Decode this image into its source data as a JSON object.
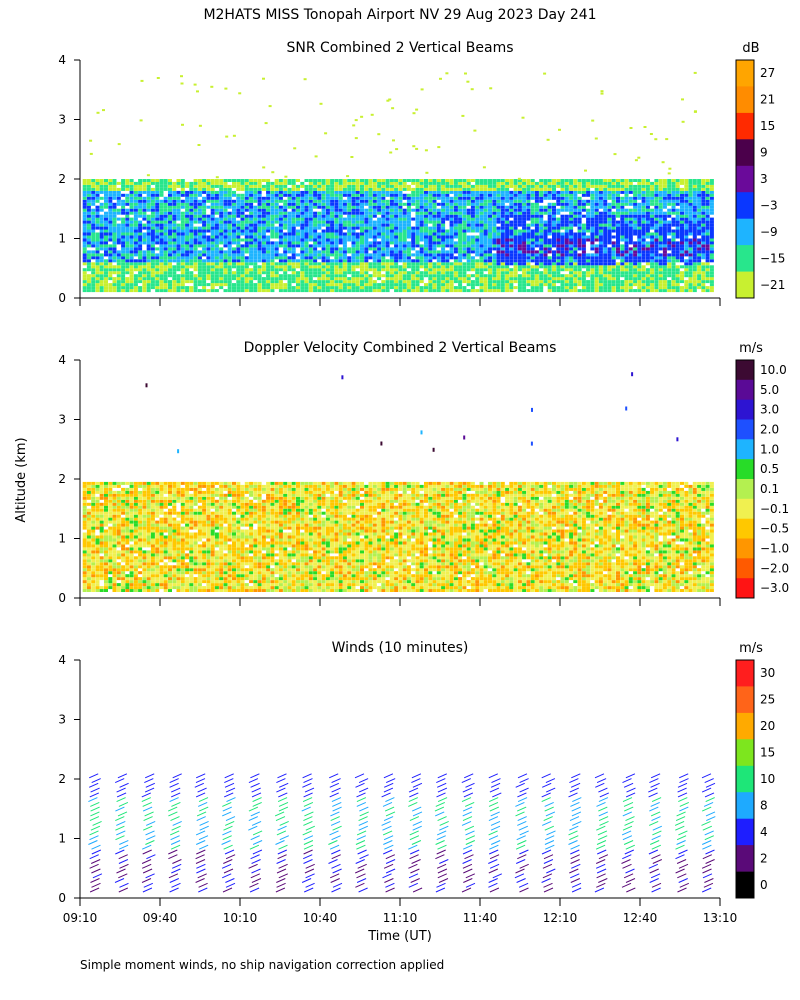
{
  "header": {
    "title": "M2HATS MISS Tonopah Airport NV  29 Aug 2023 Day 241"
  },
  "axes": {
    "shared_ylabel": "Altitude (km)",
    "shared_xlabel": "Time (UT)",
    "x_ticks": [
      "09:10",
      "09:40",
      "10:10",
      "10:40",
      "11:10",
      "11:40",
      "12:10",
      "12:40",
      "13:10"
    ],
    "y_ticks": [
      "0",
      "1",
      "2",
      "3",
      "4"
    ]
  },
  "footer": {
    "note": "Simple moment winds, no ship navigation correction applied"
  },
  "colors": {
    "white": "#ffffff",
    "black": "#000000"
  },
  "chart_data": [
    {
      "type": "heatmap",
      "title": "SNR Combined 2 Vertical Beams",
      "xlabel": "",
      "ylabel": "Altitude (km)",
      "ylim": [
        0,
        4
      ],
      "x_range": [
        "09:10",
        "13:10"
      ],
      "colorbar": {
        "unit": "dB",
        "labels": [
          "27",
          "21",
          "15",
          "9",
          "3",
          "−3",
          "−9",
          "−15",
          "−21"
        ],
        "colors": [
          "#ffa500",
          "#ff8c00",
          "#ff2a00",
          "#4b004b",
          "#6a0a9a",
          "#0a37ff",
          "#1eb4ff",
          "#28e68c",
          "#c8f030"
        ]
      },
      "layers": [
        {
          "name": "near-surface",
          "altitude_km": [
            0.1,
            0.6
          ],
          "snr_db": -15
        },
        {
          "name": "strong return band",
          "altitude_km": [
            0.6,
            1.8
          ],
          "snr_db": -6
        },
        {
          "name": "afternoon strong layers",
          "altitude_km": [
            0.5,
            1.5
          ],
          "snr_db": 0
        },
        {
          "name": "boundary-layer top",
          "altitude_km": [
            1.8,
            2.0
          ],
          "snr_db": -18
        }
      ]
    },
    {
      "type": "heatmap",
      "title": "Doppler Velocity Combined 2 Vertical Beams",
      "xlabel": "",
      "ylabel": "Altitude (km)",
      "ylim": [
        0,
        4
      ],
      "x_range": [
        "09:10",
        "13:10"
      ],
      "colorbar": {
        "unit": "m/s",
        "labels": [
          "10.0",
          "5.0",
          "3.0",
          "2.0",
          "1.0",
          "0.5",
          "0.1",
          "−0.1",
          "−0.5",
          "−1.0",
          "−2.0",
          "−3.0"
        ],
        "colors": [
          "#3c0a32",
          "#5a0a96",
          "#2d14d2",
          "#1e50ff",
          "#1eb4ff",
          "#28dc28",
          "#b4f050",
          "#f0f050",
          "#ffc800",
          "#ff9600",
          "#ff5a00",
          "#ff1414"
        ]
      },
      "layers": [
        {
          "name": "mixed layer",
          "altitude_km": [
            0.1,
            1.9
          ],
          "velocity_ms": [
            -0.5,
            0.1
          ]
        }
      ]
    },
    {
      "type": "scatter",
      "title": "Winds (10 minutes)",
      "xlabel": "Time (UT)",
      "ylabel": "Altitude (km)",
      "ylim": [
        0,
        4
      ],
      "x_range": [
        "09:10",
        "13:10"
      ],
      "colorbar": {
        "unit": "m/s",
        "labels": [
          "30",
          "25",
          "20",
          "15",
          "10",
          "8",
          "4",
          "2",
          "0"
        ],
        "colors": [
          "#ff1e1e",
          "#ff6419",
          "#ffaa00",
          "#7de61e",
          "#1ee678",
          "#1eaaff",
          "#1e1eff",
          "#5a0a78",
          "#000000"
        ]
      },
      "profiles": [
        {
          "time": "09:10"
        },
        {
          "time": "09:20"
        },
        {
          "time": "09:30"
        },
        {
          "time": "09:40"
        },
        {
          "time": "09:50"
        },
        {
          "time": "10:00"
        },
        {
          "time": "10:10"
        },
        {
          "time": "10:20"
        },
        {
          "time": "10:30"
        },
        {
          "time": "10:40"
        },
        {
          "time": "10:50"
        },
        {
          "time": "11:00"
        },
        {
          "time": "11:10"
        },
        {
          "time": "11:20"
        },
        {
          "time": "11:30"
        },
        {
          "time": "11:40"
        },
        {
          "time": "11:50"
        },
        {
          "time": "12:00"
        },
        {
          "time": "12:10"
        },
        {
          "time": "12:20"
        },
        {
          "time": "12:30"
        },
        {
          "time": "12:40"
        },
        {
          "time": "12:50"
        },
        {
          "time": "13:00"
        }
      ]
    }
  ]
}
